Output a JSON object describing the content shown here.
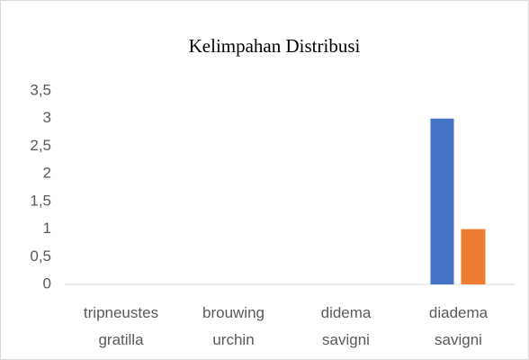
{
  "chart_data": {
    "type": "bar",
    "title": "Kelimpahan Distribusi",
    "categories": [
      "tripneustes gratilla",
      "brouwing urchin",
      "didema savigni",
      "diadema savigni"
    ],
    "series": [
      {
        "color": "#4472c4",
        "values": [
          0,
          0,
          0,
          3
        ]
      },
      {
        "color": "#ed7d31",
        "values": [
          0,
          0,
          0,
          1
        ]
      }
    ],
    "ylim": [
      0,
      3.5
    ],
    "yticks": [
      0,
      {
        "value": 0.5,
        "label": "0,5"
      },
      1,
      {
        "value": 1.5,
        "label": "1,5"
      },
      2,
      {
        "value": 2.5,
        "label": "2,5"
      },
      3,
      {
        "value": 3.5,
        "label": "3,5"
      }
    ],
    "grid": false
  }
}
